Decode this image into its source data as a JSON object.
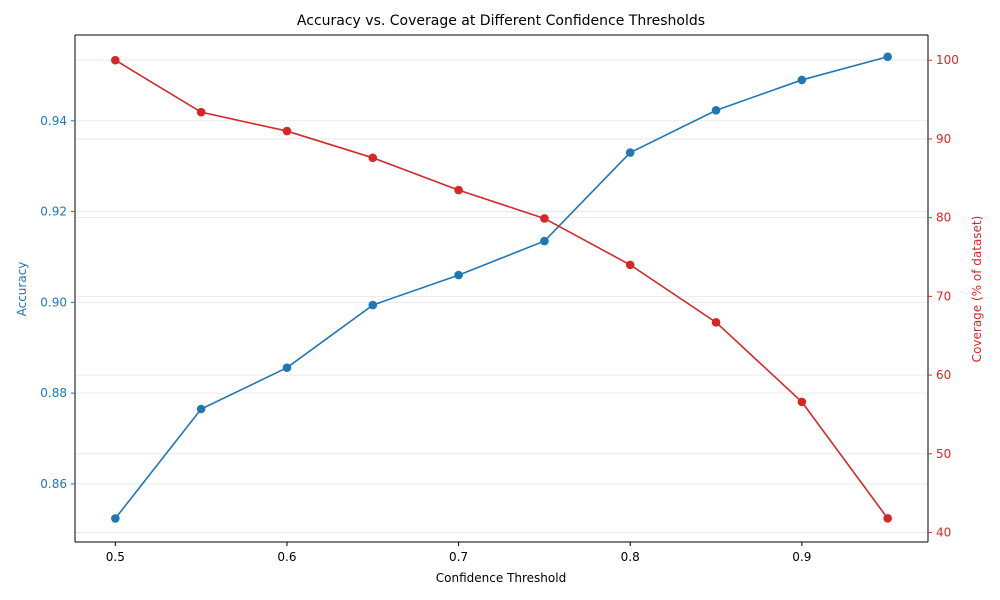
{
  "chart_data": {
    "type": "line",
    "title": "Accuracy vs. Coverage at Different Confidence Thresholds",
    "xlabel": "Confidence Threshold",
    "x": [
      0.5,
      0.55,
      0.6,
      0.65,
      0.7,
      0.75,
      0.8,
      0.85,
      0.9,
      0.95
    ],
    "xlim": [
      0.4765,
      0.9735
    ],
    "xticks": [
      0.5,
      0.6,
      0.7,
      0.8,
      0.9
    ],
    "xtick_labels": [
      "0.5",
      "0.6",
      "0.7",
      "0.8",
      "0.9"
    ],
    "grid": true,
    "colors": {
      "accuracy": "#1f77b4",
      "coverage": "#d62728",
      "axis": "#000000",
      "grid": "#e6e6e6"
    },
    "left_axis": {
      "ylabel": "Accuracy",
      "ylim": [
        0.8472,
        0.9589
      ],
      "ticks": [
        0.86,
        0.88,
        0.9,
        0.92,
        0.94
      ],
      "tick_labels": [
        "0.86",
        "0.88",
        "0.90",
        "0.92",
        "0.94"
      ]
    },
    "right_axis": {
      "ylabel": "Coverage (% of dataset)",
      "ylim": [
        38.8,
        103.2
      ],
      "ticks": [
        40,
        50,
        60,
        70,
        80,
        90,
        100
      ],
      "tick_labels": [
        "40",
        "50",
        "60",
        "70",
        "80",
        "90",
        "100"
      ]
    },
    "series": [
      {
        "key": "accuracy",
        "axis": "left",
        "values": [
          0.8524,
          0.8765,
          0.8856,
          0.8994,
          0.906,
          0.9135,
          0.933,
          0.9423,
          0.949,
          0.9541
        ]
      },
      {
        "key": "coverage",
        "axis": "right",
        "values": [
          100.0,
          93.4,
          91.0,
          87.6,
          83.5,
          79.9,
          74.0,
          66.7,
          56.6,
          41.8
        ]
      }
    ]
  }
}
